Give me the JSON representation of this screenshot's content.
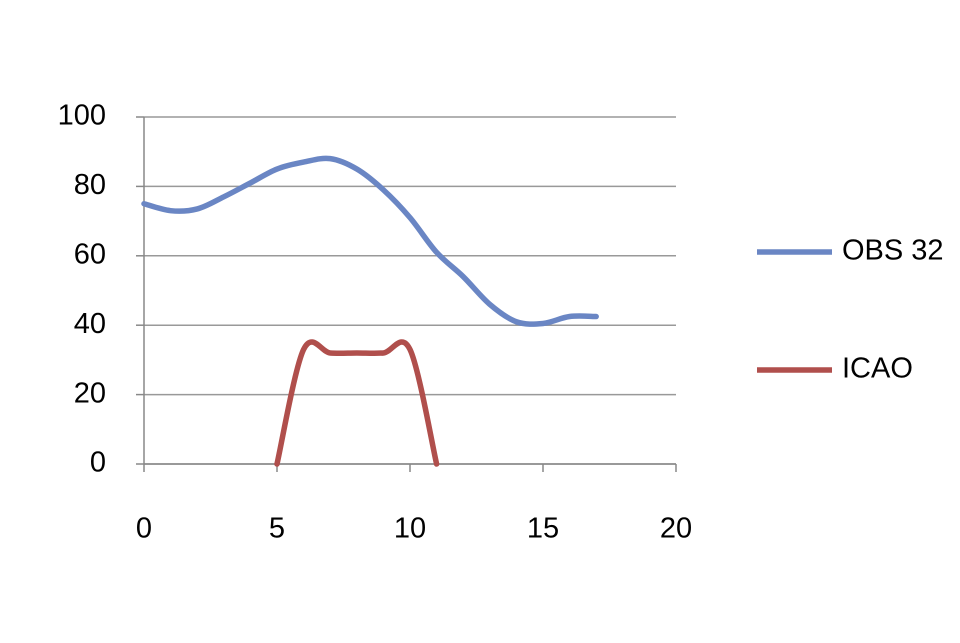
{
  "chart_data": {
    "type": "line",
    "x": [
      0,
      1,
      2,
      3,
      4,
      5,
      6,
      7,
      8,
      9,
      10,
      11,
      12,
      13,
      14,
      15,
      16,
      17
    ],
    "series": [
      {
        "name": "OBS 32",
        "color": "#6a86c4",
        "x": [
          0,
          1,
          2,
          3,
          4,
          5,
          6,
          7,
          8,
          9,
          10,
          11,
          12,
          13,
          14,
          15,
          16,
          17
        ],
        "values": [
          75,
          73,
          73.5,
          77,
          81,
          85,
          87,
          88,
          85,
          79,
          71,
          61,
          54,
          46,
          41,
          40.5,
          42.5,
          42.5
        ]
      },
      {
        "name": "ICAO",
        "color": "#b04f4c",
        "x": [
          5,
          6,
          7,
          8,
          9,
          10,
          11
        ],
        "values": [
          0,
          33,
          32,
          32,
          32,
          33,
          0
        ]
      }
    ],
    "xlim": [
      0,
      20
    ],
    "xticks": [
      0,
      5,
      10,
      15,
      20
    ],
    "ylim": [
      0,
      100
    ],
    "yticks": [
      0,
      20,
      40,
      60,
      80,
      100
    ],
    "grid": true,
    "legend": "right",
    "smooth": true
  }
}
